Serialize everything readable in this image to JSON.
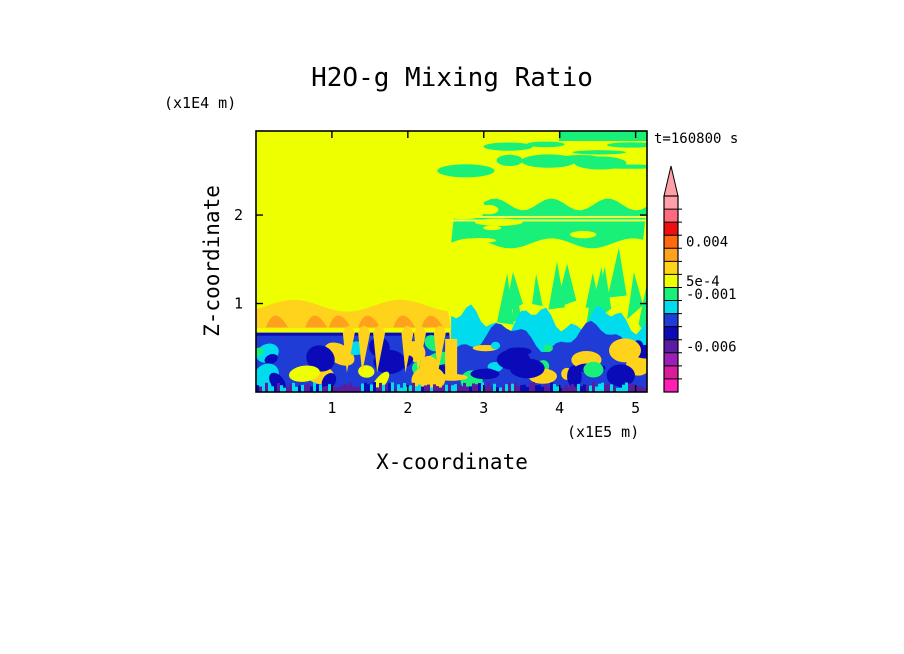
{
  "chart_data": {
    "type": "heatmap",
    "title": "H2O-g Mixing Ratio",
    "xlabel": "X-coordinate",
    "ylabel": "Z-coordinate",
    "x_scale_label": "(x1E5 m)",
    "y_scale_label": "(x1E4 m)",
    "time_label": "t=160800 s",
    "xlim": [
      0,
      5.15
    ],
    "ylim": [
      0,
      2.95
    ],
    "x_ticks": [
      1,
      2,
      3,
      4,
      5
    ],
    "x_tick_labels": [
      "1",
      "2",
      "3",
      "4",
      "5"
    ],
    "y_ticks": [
      1,
      2
    ],
    "y_tick_labels": [
      "1",
      "2"
    ],
    "colorbar": {
      "colors": [
        "#ff1fb4",
        "#d81d9a",
        "#9b1fb6",
        "#5a1ca0",
        "#0a0ab8",
        "#1f3cd6",
        "#00dcee",
        "#18f07a",
        "#eeff00",
        "#ffd21c",
        "#ffa11c",
        "#ff6a10",
        "#ee1010",
        "#ff6a80",
        "#ffa0a8"
      ],
      "labels": [
        "0.004",
        "5e-4",
        "-0.001",
        "-0.006"
      ],
      "label_boundaries": [
        11.5,
        8.5,
        7.5,
        3.5
      ],
      "extend": "max"
    },
    "field": {
      "description_free": true,
      "split_x": 2.57,
      "left_surface_z": 0.67,
      "left_orange_top_z": 1.02,
      "right_lower_yellow_top_z": 1.44,
      "right_upper_green_bottom_z": 1.68,
      "right_upper_green_top_z": 2.12,
      "right_band_z": [
        1.95,
        1.99
      ]
    }
  }
}
